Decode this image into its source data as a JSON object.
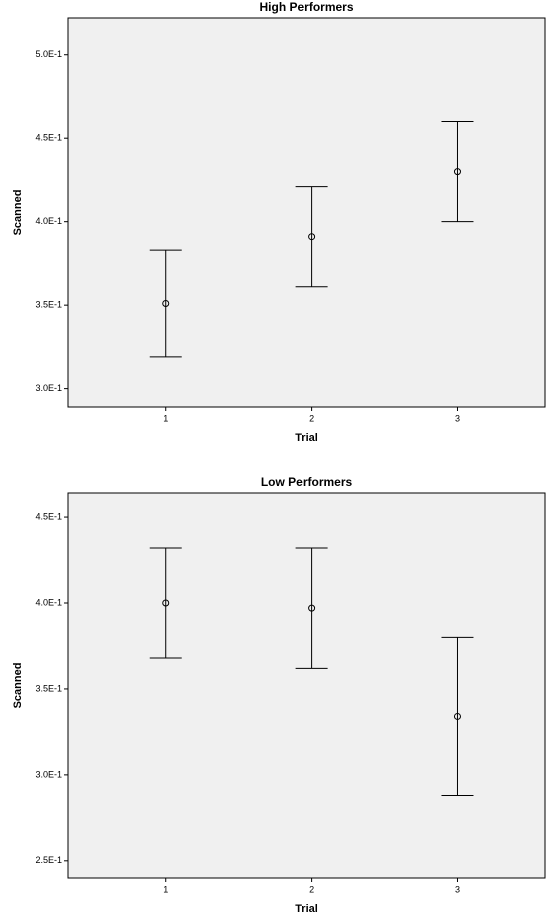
{
  "chart_data": [
    {
      "type": "errorbar",
      "title": "High Performers",
      "x_label": "Trial",
      "y_label": "Scanned",
      "x": [
        1,
        2,
        3
      ],
      "values": [
        0.351,
        0.391,
        0.43
      ],
      "errors": [
        0.032,
        0.03,
        0.03
      ],
      "xlim": [
        0.33,
        3.6
      ],
      "xticks": [
        1,
        2,
        3
      ],
      "ylim": [
        0.289,
        0.522
      ],
      "yticks": [
        {
          "value": 0.3,
          "label": "3.0E-1"
        },
        {
          "value": 0.35,
          "label": "3.5E-1"
        },
        {
          "value": 0.4,
          "label": "4.0E-1"
        },
        {
          "value": 0.45,
          "label": "4.5E-1"
        },
        {
          "value": 0.5,
          "label": "5.0E-1"
        }
      ],
      "color": "#000000",
      "background": "#f0f0f0"
    },
    {
      "type": "errorbar",
      "title": "Low Performers",
      "x_label": "Trial",
      "y_label": "Scanned",
      "x": [
        1,
        2,
        3
      ],
      "values": [
        0.4,
        0.397,
        0.334
      ],
      "errors": [
        0.032,
        0.035,
        0.046
      ],
      "xlim": [
        0.33,
        3.6
      ],
      "xticks": [
        1,
        2,
        3
      ],
      "ylim": [
        0.24,
        0.464
      ],
      "yticks": [
        {
          "value": 0.25,
          "label": "2.5E-1"
        },
        {
          "value": 0.3,
          "label": "3.0E-1"
        },
        {
          "value": 0.35,
          "label": "3.5E-1"
        },
        {
          "value": 0.4,
          "label": "4.0E-1"
        },
        {
          "value": 0.45,
          "label": "4.5E-1"
        }
      ],
      "color": "#000000",
      "background": "#f0f0f0"
    }
  ]
}
